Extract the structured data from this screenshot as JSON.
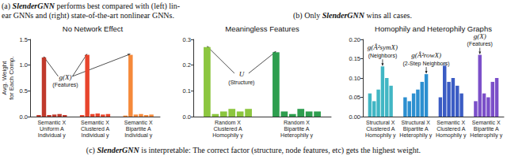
{
  "captions": {
    "a": {
      "lines": [
        "(a) SlenderGNN performs best compared with (left) lin-",
        "ear GNNs and (right) state-of-the-art nonlinear GNNs."
      ],
      "bold": "SlenderGNN"
    },
    "b": {
      "lines": [
        "(b) Only SlenderGNN wins all cases."
      ],
      "bold": "SlenderGNN"
    },
    "c": {
      "lines": [
        "(c) SlenderGNN is interpretable: The correct factor (structure, node features, etc) gets the highest weight."
      ],
      "bold": "SlenderGNN"
    }
  },
  "chart_data": [
    {
      "type": "bar",
      "title": "No Network Effect",
      "ylabel": "Avg. Weight\nfor Each Comp.",
      "categories": [
        "Semantic X\nUniform A\nIndividual y",
        "Semantic X\nClustered A\nIndividual y",
        "Semantic X\nBipartite A\nIndividual y"
      ],
      "colors": [
        "#c0392b",
        "#e8452c",
        "#f5893a"
      ],
      "series": [
        {
          "values": [
            0.03,
            0.03,
            0.02
          ]
        },
        {
          "values": [
            1.15,
            1.2,
            1.2
          ]
        },
        {
          "values": [
            0.03,
            0.05,
            0.04
          ]
        },
        {
          "values": [
            0.04,
            0.06,
            0.05
          ]
        },
        {
          "values": [
            0.05,
            0.04,
            0.03
          ]
        },
        {
          "values": [
            0.03,
            0.05,
            0.04
          ]
        }
      ],
      "ylim": [
        0,
        1.5
      ],
      "yticks": [
        {
          "value": 0,
          "label": "0.0"
        },
        0.5,
        {
          "value": 1,
          "label": "1.0"
        },
        1.5
      ],
      "grid": false,
      "annotations": [
        {
          "text": "g(X)",
          "subtext": "(Features)",
          "targets": [
            [
              0,
              1
            ],
            [
              1,
              1
            ],
            [
              2,
              1
            ]
          ]
        }
      ]
    },
    {
      "type": "bar",
      "title": "Meaningless Features",
      "categories": [
        "Random X\nClustered A\nHomophily y",
        "Random X\nBipartite A\nHeterophily y"
      ],
      "colors": [
        "#8cc63f",
        "#2e9e4f"
      ],
      "series": [
        {
          "values": [
            0.27,
            0.25
          ]
        },
        {
          "values": [
            0.01,
            0.02
          ]
        },
        {
          "values": [
            0.02,
            0.01
          ]
        },
        {
          "values": [
            0.03,
            0.03
          ]
        },
        {
          "values": [
            0.02,
            0.02
          ]
        },
        {
          "values": [
            0.03,
            0.02
          ]
        }
      ],
      "ylim": [
        0,
        0.3
      ],
      "yticks": [
        {
          "value": 0,
          "label": "0.0"
        },
        0.1,
        0.2,
        0.3
      ],
      "grid": false,
      "annotations": [
        {
          "text": "U",
          "subtext": "(Structure)",
          "targets": [
            [
              0,
              0
            ],
            [
              1,
              0
            ]
          ]
        }
      ]
    },
    {
      "type": "bar",
      "title": "Homophily and Heterophily Graphs",
      "categories": [
        "Structural X\nClustered A\nHomophily y",
        "Structural X\nBipartite A\nHeterophily y",
        "Semantic X\nClustered A\nHomophily y",
        "Semantic X\nBipartite A\nHeterophily y"
      ],
      "colors": [
        "#41b6c4",
        "#2c8fd0",
        "#3b5cc4",
        "#7b4fc9"
      ],
      "series": [
        {
          "values": [
            0.06,
            0.05,
            0.05,
            0.04
          ]
        },
        {
          "values": [
            0.04,
            0.04,
            0.14,
            0.16
          ]
        },
        {
          "values": [
            0.07,
            0.06,
            0.09,
            0.06
          ]
        },
        {
          "values": [
            0.13,
            0.07,
            0.1,
            0.05
          ]
        },
        {
          "values": [
            0.1,
            0.09,
            0.08,
            0.09
          ]
        },
        {
          "values": [
            0.08,
            0.11,
            0.06,
            0.1
          ]
        }
      ],
      "ylim": [
        0,
        0.2
      ],
      "yticks": [
        {
          "value": 0,
          "label": "0.00"
        },
        0.05,
        {
          "value": 0.1,
          "label": "0.10"
        },
        0.15,
        {
          "value": 0.2,
          "label": "0.20"
        }
      ],
      "grid": false,
      "annotations": [
        {
          "text": "g(Â²symX)",
          "subtext": "(Neighbors)",
          "targets": [
            [
              0,
              3
            ]
          ]
        },
        {
          "text": "g(Â²rowX)",
          "subtext": "(2-Step Neighbors)",
          "targets": [
            [
              1,
              5
            ]
          ]
        },
        {
          "text": "g(X)",
          "subtext": "(Features)",
          "targets": [
            [
              3,
              1
            ]
          ]
        }
      ]
    }
  ]
}
